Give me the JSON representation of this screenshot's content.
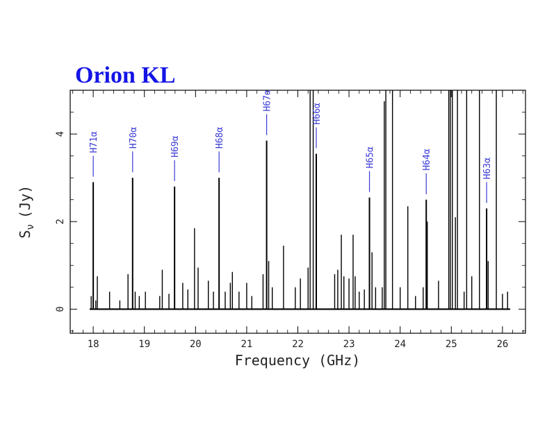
{
  "chart_data": {
    "type": "line",
    "title": "Orion KL",
    "xlabel": "Frequency (GHz)",
    "ylabel": "S_ν (Jy)",
    "ylabel_main": "S",
    "ylabel_sub": "ν",
    "ylabel_unit": "(Jy)",
    "xlim": [
      17.55,
      26.45
    ],
    "ylim": [
      -0.55,
      5.0
    ],
    "xticks": [
      18,
      19,
      20,
      21,
      22,
      23,
      24,
      25,
      26
    ],
    "yticks": [
      0,
      2,
      4
    ],
    "line_color": "#000000",
    "label_color": "#3a3ad6",
    "recombination_lines": [
      {
        "name": "H71α",
        "freq": 18.0,
        "peak": 2.9
      },
      {
        "name": "H70α",
        "freq": 18.77,
        "peak": 3.0
      },
      {
        "name": "H69α",
        "freq": 19.59,
        "peak": 2.8
      },
      {
        "name": "H68α",
        "freq": 20.46,
        "peak": 3.0
      },
      {
        "name": "H67α",
        "freq": 21.39,
        "peak": 3.85
      },
      {
        "name": "H66α",
        "freq": 22.36,
        "peak": 3.55
      },
      {
        "name": "H65α",
        "freq": 23.4,
        "peak": 2.55
      },
      {
        "name": "H64α",
        "freq": 24.51,
        "peak": 2.5
      },
      {
        "name": "H63α",
        "freq": 25.69,
        "peak": 2.3
      }
    ],
    "series": [
      {
        "x": [
          17.96,
          18.05,
          18.08,
          18.32,
          18.52,
          18.68,
          18.82,
          18.9,
          19.02,
          19.3,
          19.35,
          19.48,
          19.75,
          19.85,
          19.98,
          20.05,
          20.25,
          20.35,
          20.58,
          20.68,
          20.72,
          20.85,
          21.0,
          21.1,
          21.32,
          21.43,
          21.5,
          21.72,
          21.95,
          22.05,
          22.2,
          22.24,
          22.3,
          22.72,
          22.78,
          22.85,
          22.9,
          23.0,
          23.08,
          23.12,
          23.2,
          23.3,
          23.45,
          23.52,
          23.65,
          23.69,
          23.72,
          23.85,
          24.0,
          24.15,
          24.3,
          24.45,
          24.53,
          24.75,
          24.95,
          24.98,
          25.02,
          25.08,
          25.12,
          25.25,
          25.3,
          25.4,
          25.55,
          25.72,
          25.88,
          26.0,
          26.1
        ],
        "y": [
          0.3,
          0.2,
          0.75,
          0.4,
          0.2,
          0.8,
          0.4,
          0.3,
          0.4,
          0.3,
          0.9,
          0.35,
          0.6,
          0.45,
          1.85,
          0.95,
          0.65,
          0.4,
          0.4,
          0.6,
          0.85,
          0.4,
          0.6,
          0.3,
          0.8,
          1.1,
          0.5,
          1.45,
          0.5,
          0.7,
          0.95,
          5.0,
          5.0,
          0.8,
          0.9,
          1.7,
          0.75,
          0.7,
          1.7,
          0.75,
          0.4,
          0.45,
          1.3,
          0.5,
          0.5,
          4.75,
          5.0,
          5.0,
          0.5,
          2.35,
          0.3,
          0.5,
          2.0,
          0.65,
          5.0,
          5.0,
          5.0,
          2.1,
          5.0,
          0.4,
          5.0,
          0.75,
          5.0,
          1.1,
          5.0,
          0.35,
          0.4
        ]
      }
    ]
  }
}
